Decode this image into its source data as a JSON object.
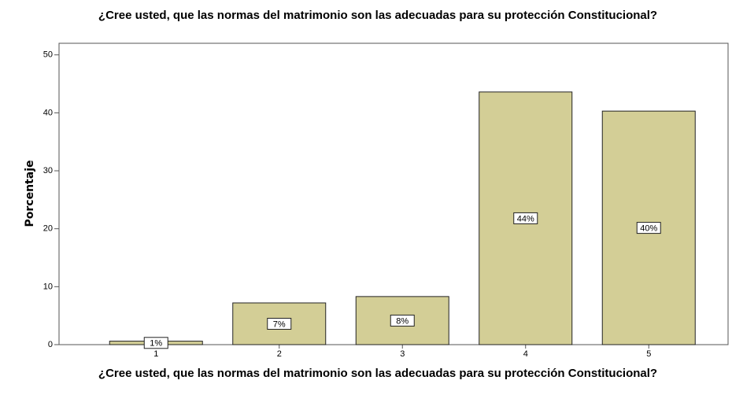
{
  "chart_data": {
    "type": "bar",
    "title": "¿Cree usted, que las normas del matrimonio son las adecuadas para su protección Constitucional?",
    "x_label": "¿Cree usted, que las normas del matrimonio son las adecuadas para su protección Constitucional?",
    "y_label": "Porcentaje",
    "categories": [
      "1",
      "2",
      "3",
      "4",
      "5"
    ],
    "values": [
      0.6,
      7.2,
      8.3,
      43.6,
      40.3
    ],
    "value_labels": [
      "1%",
      "7%",
      "8%",
      "44%",
      "40%"
    ],
    "color": "#d3ce96",
    "ylim": [
      0,
      52
    ],
    "yticks": [
      0,
      10,
      20,
      30,
      40,
      50
    ],
    "grid": false
  }
}
